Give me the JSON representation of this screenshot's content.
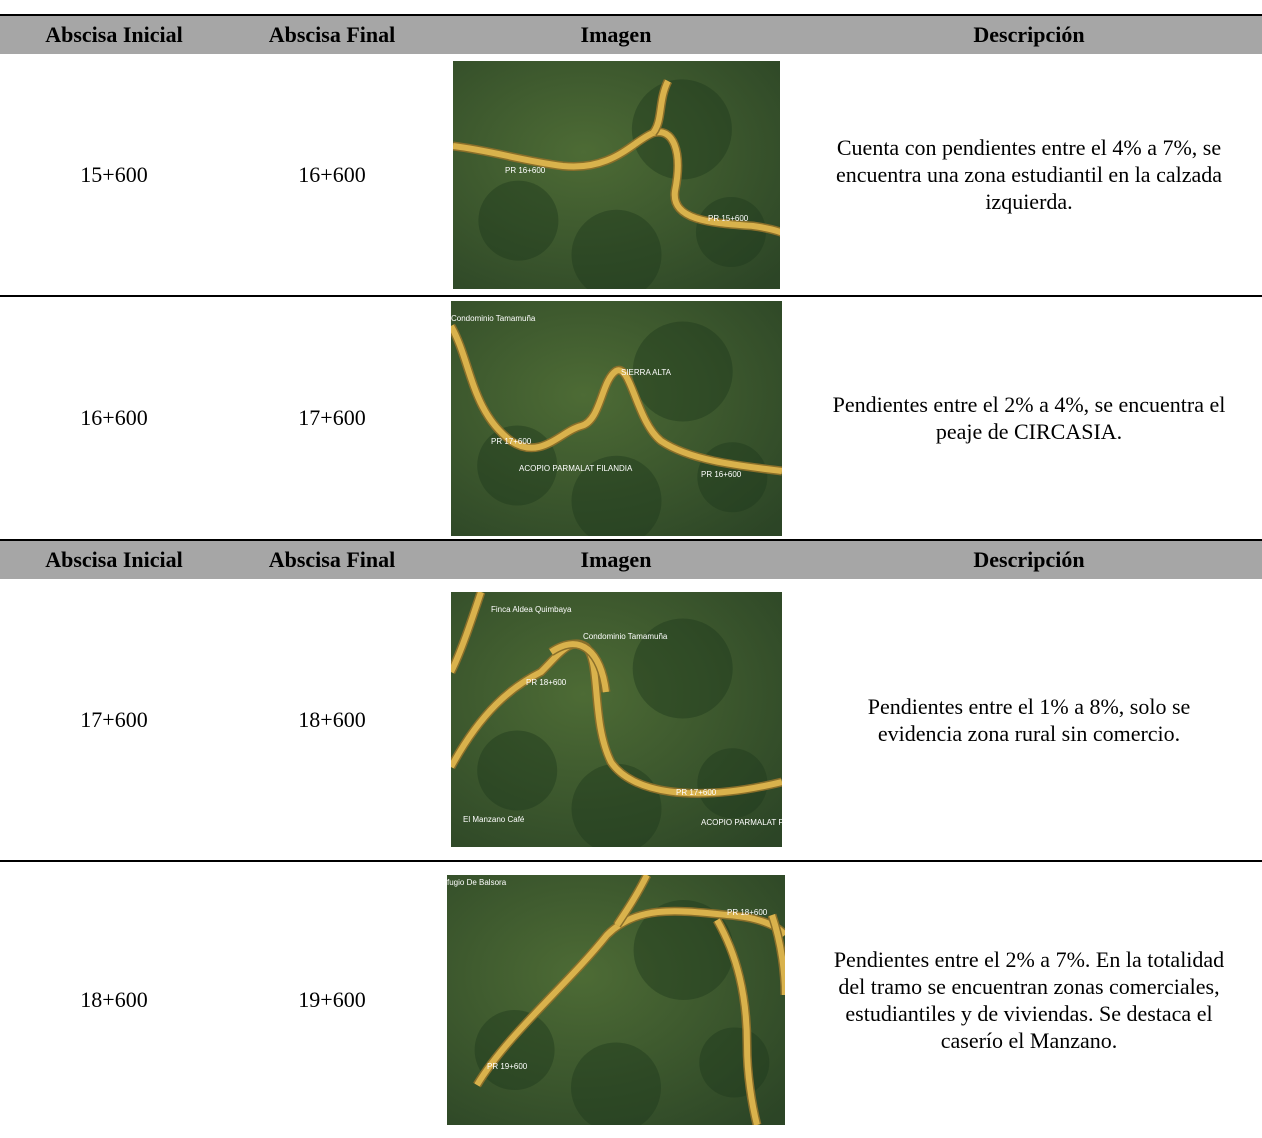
{
  "blocks": [
    {
      "header": [
        "Abscisa Inicial",
        "Abscisa Final",
        "Imagen",
        "Descripción"
      ],
      "rows": [
        {
          "start": "15+600",
          "end": "16+600",
          "image_labels": [
            "PR 16+600",
            "PR 15+600"
          ],
          "description": "Cuenta con pendientes entre el 4% a 7%, se encuentra una zona estudiantil en la calzada izquierda."
        },
        {
          "start": "16+600",
          "end": "17+600",
          "image_labels": [
            "Condominio Tamamuña",
            "SIERRA ALTA",
            "PR 17+600",
            "ACOPIO PARMALAT FILANDIA",
            "PR 16+600"
          ],
          "description": "Pendientes entre el 2% a 4%, se encuentra el peaje de CIRCASIA."
        }
      ]
    },
    {
      "header": [
        "Abscisa Inicial",
        "Abscisa Final",
        "Imagen",
        "Descripción"
      ],
      "rows": [
        {
          "start": "17+600",
          "end": "18+600",
          "image_labels": [
            "Finca Aldea Quimbaya",
            "Condominio Tamamuña",
            "PR 18+600",
            "PR 17+600",
            "El Manzano Café",
            "ACOPIO PARMALAT FI"
          ],
          "description": "Pendientes entre el 1% a 8%, solo se evidencia zona rural sin comercio."
        },
        {
          "start": "18+600",
          "end": "19+600",
          "image_labels": [
            "fugio De Balsora",
            "PR 18+600",
            "PR 19+600"
          ],
          "description": "Pendientes entre el 2% a 7%. En la totalidad del tramo se encuentran zonas comerciales, estudiantiles y de viviendas. Se destaca el caserío el Manzano."
        }
      ]
    }
  ]
}
